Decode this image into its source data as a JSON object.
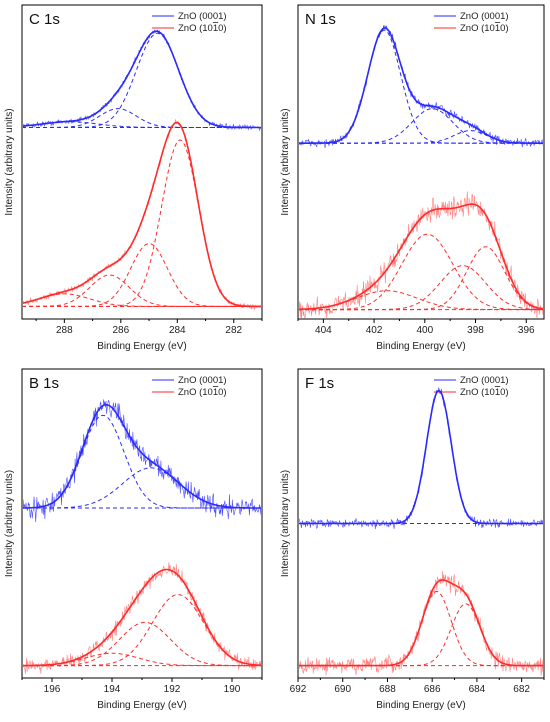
{
  "figure": {
    "ylabel": "Intensity (arbitrary units)",
    "xlabel": "Binding Energy (eV)"
  },
  "legend": {
    "series_a": "ZnO (0001)",
    "series_b": "ZnO (1010)",
    "color_a": "#2a2aff",
    "color_b": "#ff2a2a"
  },
  "chart_data": [
    {
      "panel": "C 1s",
      "type": "line",
      "xlabel": "Binding Energy (eV)",
      "ylabel": "Intensity (arbitrary units)",
      "xlim": [
        289.5,
        281
      ],
      "x_reversed": true,
      "xticks": [
        288,
        286,
        284,
        282
      ],
      "series": [
        {
          "name": "ZnO (0001)",
          "color": "#2a2aff",
          "baseline": 0.61,
          "peaks": [
            {
              "center": 284.7,
              "amplitude": 0.3,
              "width": 0.75
            },
            {
              "center": 286.1,
              "amplitude": 0.06,
              "width": 0.65
            },
            {
              "center": 287.8,
              "amplitude": 0.018,
              "width": 1.0
            }
          ]
        },
        {
          "name": "ZnO (1010)",
          "color": "#ff2a2a",
          "baseline": 0.04,
          "peaks": [
            {
              "center": 283.9,
              "amplitude": 0.53,
              "width": 0.65
            },
            {
              "center": 285.0,
              "amplitude": 0.2,
              "width": 0.65
            },
            {
              "center": 286.4,
              "amplitude": 0.1,
              "width": 0.7
            },
            {
              "center": 288.0,
              "amplitude": 0.04,
              "width": 0.9
            }
          ]
        }
      ]
    },
    {
      "panel": "N 1s",
      "type": "line",
      "xlabel": "Binding Energy (eV)",
      "ylabel": "Intensity (arbitrary units)",
      "xlim": [
        405,
        395.3
      ],
      "x_reversed": true,
      "xticks": [
        404,
        402,
        400,
        398,
        396
      ],
      "series": [
        {
          "name": "ZnO (0001)",
          "color": "#2a2aff",
          "baseline": 0.56,
          "peaks": [
            {
              "center": 401.6,
              "amplitude": 0.36,
              "width": 0.65
            },
            {
              "center": 399.7,
              "amplitude": 0.11,
              "width": 0.8
            },
            {
              "center": 398.2,
              "amplitude": 0.04,
              "width": 0.65
            }
          ]
        },
        {
          "name": "ZnO (1010)",
          "color": "#ff2a2a",
          "baseline": 0.03,
          "peaks": [
            {
              "center": 399.9,
              "amplitude": 0.24,
              "width": 1.0
            },
            {
              "center": 398.5,
              "amplitude": 0.14,
              "width": 0.9
            },
            {
              "center": 397.6,
              "amplitude": 0.2,
              "width": 0.75
            },
            {
              "center": 401.5,
              "amplitude": 0.06,
              "width": 1.2
            }
          ]
        }
      ]
    },
    {
      "panel": "B 1s",
      "type": "line",
      "xlabel": "Binding Energy (eV)",
      "ylabel": "Intensity (arbitrary units)",
      "xlim": [
        197,
        189
      ],
      "x_reversed": true,
      "xticks": [
        196,
        194,
        192,
        190
      ],
      "series": [
        {
          "name": "ZnO (0001)",
          "color": "#2a2aff",
          "baseline": 0.55,
          "peaks": [
            {
              "center": 194.3,
              "amplitude": 0.3,
              "width": 0.7
            },
            {
              "center": 192.7,
              "amplitude": 0.13,
              "width": 0.95
            }
          ]
        },
        {
          "name": "ZnO (1010)",
          "color": "#ff2a2a",
          "baseline": 0.04,
          "peaks": [
            {
              "center": 191.8,
              "amplitude": 0.23,
              "width": 0.85
            },
            {
              "center": 192.9,
              "amplitude": 0.14,
              "width": 0.85
            },
            {
              "center": 194.0,
              "amplitude": 0.04,
              "width": 0.9
            }
          ]
        }
      ]
    },
    {
      "panel": "F 1s",
      "type": "line",
      "xlabel": "Binding Energy (eV)",
      "ylabel": "Intensity (arbitrary units)",
      "xlim": [
        692,
        681
      ],
      "x_reversed": true,
      "xticks": [
        692,
        690,
        688,
        686,
        684,
        682
      ],
      "series": [
        {
          "name": "ZnO (0001)",
          "color": "#2a2aff",
          "baseline": 0.5,
          "peaks": [
            {
              "center": 685.7,
              "amplitude": 0.43,
              "width": 0.55
            }
          ]
        },
        {
          "name": "ZnO (1010)",
          "color": "#ff2a2a",
          "baseline": 0.04,
          "peaks": [
            {
              "center": 685.8,
              "amplitude": 0.24,
              "width": 0.65
            },
            {
              "center": 684.5,
              "amplitude": 0.2,
              "width": 0.65
            }
          ]
        }
      ]
    }
  ]
}
